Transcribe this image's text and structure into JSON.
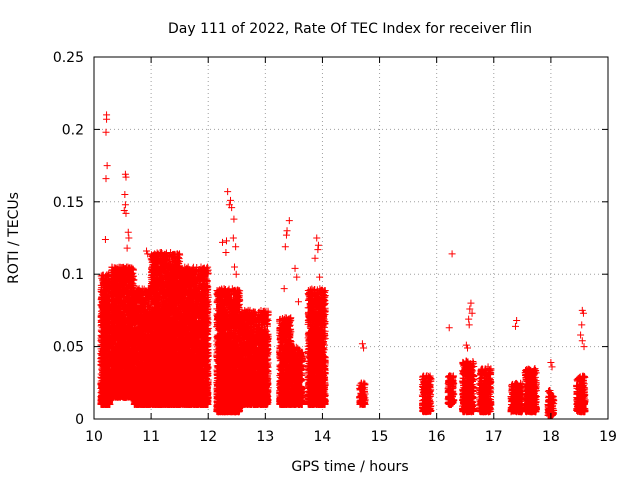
{
  "chart_data": {
    "type": "scatter",
    "title": "Day 111 of 2022, Rate Of TEC Index for receiver flin",
    "xlabel": "GPS time / hours",
    "ylabel": "ROTI / TECUs",
    "xlim": [
      10,
      19
    ],
    "ylim": [
      0,
      0.25
    ],
    "x_ticks": [
      "10",
      "11",
      "12",
      "13",
      "14",
      "15",
      "16",
      "17",
      "18",
      "19"
    ],
    "y_ticks": [
      "0",
      "0.05",
      "0.1",
      "0.15",
      "0.2",
      "0.25"
    ],
    "grid": true,
    "marker": "plus",
    "color": "#ff0000",
    "clusters": [
      {
        "x": [
          10.12,
          10.28
        ],
        "y": [
          0.01,
          0.1
        ]
      },
      {
        "x": [
          10.3,
          10.7
        ],
        "y": [
          0.015,
          0.105
        ]
      },
      {
        "x": [
          10.7,
          11.0
        ],
        "y": [
          0.01,
          0.09
        ]
      },
      {
        "x": [
          11.0,
          11.5
        ],
        "y": [
          0.01,
          0.115
        ]
      },
      {
        "x": [
          11.5,
          12.0
        ],
        "y": [
          0.01,
          0.105
        ]
      },
      {
        "x": [
          12.15,
          12.55
        ],
        "y": [
          0.005,
          0.09
        ]
      },
      {
        "x": [
          12.55,
          13.05
        ],
        "y": [
          0.01,
          0.075
        ]
      },
      {
        "x": [
          13.25,
          13.45
        ],
        "y": [
          0.01,
          0.07
        ]
      },
      {
        "x": [
          13.45,
          13.65
        ],
        "y": [
          0.01,
          0.05
        ]
      },
      {
        "x": [
          13.75,
          14.05
        ],
        "y": [
          0.01,
          0.09
        ]
      },
      {
        "x": [
          14.65,
          14.75
        ],
        "y": [
          0.01,
          0.025
        ]
      },
      {
        "x": [
          15.75,
          15.9
        ],
        "y": [
          0.005,
          0.03
        ]
      },
      {
        "x": [
          16.2,
          16.3
        ],
        "y": [
          0.01,
          0.03
        ]
      },
      {
        "x": [
          16.45,
          16.65
        ],
        "y": [
          0.005,
          0.04
        ]
      },
      {
        "x": [
          16.75,
          16.95
        ],
        "y": [
          0.005,
          0.035
        ]
      },
      {
        "x": [
          17.3,
          17.5
        ],
        "y": [
          0.005,
          0.025
        ]
      },
      {
        "x": [
          17.55,
          17.75
        ],
        "y": [
          0.005,
          0.035
        ]
      },
      {
        "x": [
          17.95,
          18.05
        ],
        "y": [
          0.002,
          0.02
        ]
      },
      {
        "x": [
          18.45,
          18.6
        ],
        "y": [
          0.005,
          0.03
        ]
      }
    ],
    "points": [
      {
        "x": 10.22,
        "y": 0.21
      },
      {
        "x": 10.22,
        "y": 0.207
      },
      {
        "x": 10.21,
        "y": 0.198
      },
      {
        "x": 10.23,
        "y": 0.175
      },
      {
        "x": 10.21,
        "y": 0.166
      },
      {
        "x": 10.2,
        "y": 0.124
      },
      {
        "x": 10.55,
        "y": 0.169
      },
      {
        "x": 10.56,
        "y": 0.167
      },
      {
        "x": 10.54,
        "y": 0.155
      },
      {
        "x": 10.55,
        "y": 0.148
      },
      {
        "x": 10.53,
        "y": 0.144
      },
      {
        "x": 10.56,
        "y": 0.142
      },
      {
        "x": 10.6,
        "y": 0.129
      },
      {
        "x": 10.61,
        "y": 0.125
      },
      {
        "x": 10.58,
        "y": 0.118
      },
      {
        "x": 10.92,
        "y": 0.116
      },
      {
        "x": 10.94,
        "y": 0.114
      },
      {
        "x": 12.34,
        "y": 0.157
      },
      {
        "x": 12.39,
        "y": 0.151
      },
      {
        "x": 12.37,
        "y": 0.148
      },
      {
        "x": 12.41,
        "y": 0.146
      },
      {
        "x": 12.45,
        "y": 0.138
      },
      {
        "x": 12.44,
        "y": 0.125
      },
      {
        "x": 12.32,
        "y": 0.123
      },
      {
        "x": 12.25,
        "y": 0.122
      },
      {
        "x": 12.48,
        "y": 0.119
      },
      {
        "x": 12.31,
        "y": 0.115
      },
      {
        "x": 12.46,
        "y": 0.105
      },
      {
        "x": 12.49,
        "y": 0.1
      },
      {
        "x": 13.42,
        "y": 0.137
      },
      {
        "x": 13.38,
        "y": 0.13
      },
      {
        "x": 13.37,
        "y": 0.127
      },
      {
        "x": 13.35,
        "y": 0.119
      },
      {
        "x": 13.33,
        "y": 0.09
      },
      {
        "x": 13.58,
        "y": 0.081
      },
      {
        "x": 13.52,
        "y": 0.104
      },
      {
        "x": 13.55,
        "y": 0.098
      },
      {
        "x": 13.9,
        "y": 0.125
      },
      {
        "x": 13.93,
        "y": 0.12
      },
      {
        "x": 13.92,
        "y": 0.117
      },
      {
        "x": 13.87,
        "y": 0.111
      },
      {
        "x": 13.95,
        "y": 0.098
      },
      {
        "x": 13.98,
        "y": 0.085
      },
      {
        "x": 13.85,
        "y": 0.082
      },
      {
        "x": 13.97,
        "y": 0.079
      },
      {
        "x": 14.7,
        "y": 0.052
      },
      {
        "x": 14.72,
        "y": 0.049
      },
      {
        "x": 16.27,
        "y": 0.114
      },
      {
        "x": 16.22,
        "y": 0.063
      },
      {
        "x": 16.6,
        "y": 0.08
      },
      {
        "x": 16.58,
        "y": 0.076
      },
      {
        "x": 16.62,
        "y": 0.073
      },
      {
        "x": 16.56,
        "y": 0.069
      },
      {
        "x": 16.57,
        "y": 0.065
      },
      {
        "x": 16.52,
        "y": 0.051
      },
      {
        "x": 16.54,
        "y": 0.049
      },
      {
        "x": 16.9,
        "y": 0.036
      },
      {
        "x": 17.4,
        "y": 0.068
      },
      {
        "x": 17.38,
        "y": 0.064
      },
      {
        "x": 18.0,
        "y": 0.039
      },
      {
        "x": 18.02,
        "y": 0.036
      },
      {
        "x": 18.55,
        "y": 0.075
      },
      {
        "x": 18.57,
        "y": 0.073
      },
      {
        "x": 18.54,
        "y": 0.065
      },
      {
        "x": 18.52,
        "y": 0.058
      },
      {
        "x": 18.55,
        "y": 0.054
      },
      {
        "x": 18.58,
        "y": 0.05
      }
    ]
  }
}
